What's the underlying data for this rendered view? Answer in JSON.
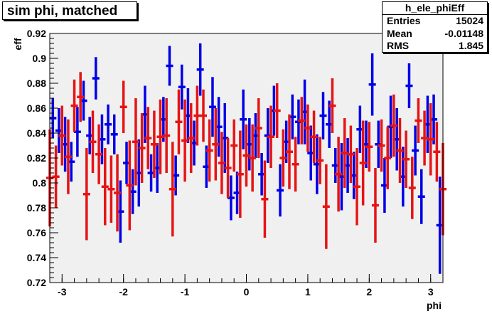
{
  "title": "sim phi, matched",
  "stats": {
    "name": "h_ele_phiEff",
    "rows": [
      {
        "key": "Entries",
        "value": "15024"
      },
      {
        "key": "Mean",
        "value": "-0.01148"
      },
      {
        "key": "RMS",
        "value": "1.845"
      }
    ]
  },
  "colors": {
    "frame_bg": "#f0f0f0",
    "series_blue": "#0000e6",
    "series_red": "#e61414"
  },
  "chart_data": {
    "type": "scatter",
    "xlabel": "phi",
    "ylabel": "eff",
    "xlim": [
      -3.2,
      3.2
    ],
    "ylim": [
      0.72,
      0.92
    ],
    "xticks": [
      -3,
      -2,
      -1,
      0,
      1,
      2,
      3
    ],
    "yticks": [
      0.72,
      0.74,
      0.76,
      0.78,
      0.8,
      0.82,
      0.84,
      0.86,
      0.88,
      0.9,
      0.92
    ],
    "series": [
      {
        "color": "blue",
        "x": [
          -3.15,
          -3.05,
          -2.95,
          -2.85,
          -2.75,
          -2.65,
          -2.55,
          -2.45,
          -2.35,
          -2.25,
          -2.15,
          -2.05,
          -1.95,
          -1.85,
          -1.75,
          -1.65,
          -1.55,
          -1.45,
          -1.35,
          -1.25,
          -1.15,
          -1.05,
          -0.95,
          -0.85,
          -0.75,
          -0.65,
          -0.55,
          -0.45,
          -0.35,
          -0.25,
          -0.15,
          -0.05,
          0.05,
          0.15,
          0.25,
          0.35,
          0.45,
          0.55,
          0.65,
          0.75,
          0.85,
          0.95,
          1.05,
          1.15,
          1.25,
          1.35,
          1.45,
          1.55,
          1.65,
          1.75,
          1.85,
          1.95,
          2.05,
          2.15,
          2.25,
          2.35,
          2.45,
          2.55,
          2.65,
          2.75,
          2.85,
          2.95,
          3.05,
          3.15
        ],
        "y": [
          0.852,
          0.842,
          0.831,
          0.817,
          0.841,
          0.866,
          0.838,
          0.884,
          0.835,
          0.847,
          0.839,
          0.777,
          0.816,
          0.793,
          0.808,
          0.855,
          0.808,
          0.812,
          0.851,
          0.894,
          0.806,
          0.877,
          0.854,
          0.832,
          0.891,
          0.813,
          0.861,
          0.845,
          0.836,
          0.788,
          0.792,
          0.851,
          0.831,
          0.838,
          0.807,
          0.838,
          0.858,
          0.794,
          0.833,
          0.853,
          0.849,
          0.857,
          0.824,
          0.815,
          0.854,
          0.847,
          0.814,
          0.805,
          0.814,
          0.806,
          0.843,
          0.831,
          0.879,
          0.831,
          0.798,
          0.845,
          0.835,
          0.805,
          0.878,
          0.826,
          0.789,
          0.847,
          0.851,
          0.766
        ],
        "err": [
          0.016,
          0.018,
          0.022,
          0.016,
          0.02,
          0.016,
          0.015,
          0.017,
          0.02,
          0.016,
          0.016,
          0.025,
          0.017,
          0.018,
          0.027,
          0.023,
          0.015,
          0.02,
          0.018,
          0.016,
          0.016,
          0.018,
          0.022,
          0.018,
          0.021,
          0.017,
          0.024,
          0.024,
          0.028,
          0.018,
          0.017,
          0.024,
          0.021,
          0.018,
          0.017,
          0.022,
          0.02,
          0.021,
          0.017,
          0.018,
          0.018,
          0.026,
          0.022,
          0.024,
          0.019,
          0.019,
          0.014,
          0.027,
          0.022,
          0.019,
          0.019,
          0.019,
          0.025,
          0.019,
          0.022,
          0.025,
          0.025,
          0.024,
          0.018,
          0.02,
          0.022,
          0.023,
          0.02,
          0.039
        ]
      },
      {
        "color": "red",
        "x": [
          -3.2,
          -3.1,
          -3.0,
          -2.9,
          -2.8,
          -2.7,
          -2.6,
          -2.5,
          -2.4,
          -2.3,
          -2.2,
          -2.1,
          -2.0,
          -1.9,
          -1.8,
          -1.7,
          -1.6,
          -1.5,
          -1.4,
          -1.3,
          -1.2,
          -1.1,
          -1.0,
          -0.9,
          -0.8,
          -0.7,
          -0.6,
          -0.5,
          -0.4,
          -0.3,
          -0.2,
          -0.1,
          0.0,
          0.1,
          0.2,
          0.3,
          0.4,
          0.5,
          0.6,
          0.7,
          0.8,
          0.9,
          1.0,
          1.1,
          1.2,
          1.3,
          1.4,
          1.5,
          1.6,
          1.7,
          1.8,
          1.9,
          2.0,
          2.1,
          2.2,
          2.3,
          2.4,
          2.5,
          2.6,
          2.7,
          2.8,
          2.9,
          3.0,
          3.1,
          3.2
        ],
        "y": [
          0.804,
          0.805,
          0.838,
          0.821,
          0.862,
          0.869,
          0.791,
          0.833,
          0.823,
          0.797,
          0.795,
          0.792,
          0.861,
          0.798,
          0.833,
          0.828,
          0.836,
          0.831,
          0.837,
          0.838,
          0.795,
          0.849,
          0.834,
          0.836,
          0.854,
          0.854,
          0.826,
          0.831,
          0.816,
          0.812,
          0.83,
          0.807,
          0.822,
          0.82,
          0.844,
          0.787,
          0.837,
          0.858,
          0.82,
          0.825,
          0.815,
          0.85,
          0.844,
          0.837,
          0.818,
          0.781,
          0.862,
          0.807,
          0.824,
          0.823,
          0.797,
          0.816,
          0.829,
          0.782,
          0.83,
          0.82,
          0.846,
          0.826,
          0.819,
          0.796,
          0.85,
          0.836,
          0.835,
          0.825,
          0.795
        ],
        "err": [
          0.039,
          0.025,
          0.024,
          0.03,
          0.021,
          0.02,
          0.037,
          0.025,
          0.024,
          0.031,
          0.027,
          0.031,
          0.021,
          0.036,
          0.035,
          0.028,
          0.025,
          0.027,
          0.03,
          0.03,
          0.038,
          0.026,
          0.033,
          0.028,
          0.024,
          0.021,
          0.025,
          0.029,
          0.025,
          0.024,
          0.021,
          0.035,
          0.025,
          0.027,
          0.024,
          0.031,
          0.025,
          0.022,
          0.023,
          0.03,
          0.022,
          0.019,
          0.019,
          0.021,
          0.019,
          0.034,
          0.022,
          0.03,
          0.028,
          0.023,
          0.031,
          0.034,
          0.02,
          0.03,
          0.021,
          0.025,
          0.025,
          0.026,
          0.023,
          0.025,
          0.018,
          0.022,
          0.029,
          0.024,
          0.037
        ]
      }
    ]
  }
}
